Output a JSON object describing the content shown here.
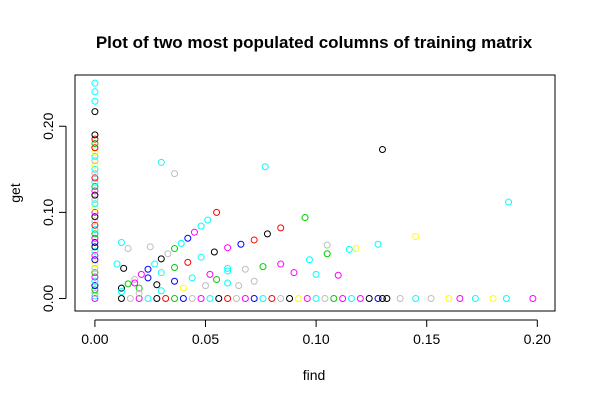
{
  "chart_data": {
    "type": "scatter",
    "title": "Plot of two most populated columns of training matrix",
    "xlabel": "find",
    "ylabel": "get",
    "xlim": [
      -0.009,
      0.208
    ],
    "ylim": [
      -0.0145,
      0.2595
    ],
    "xticks": [
      "0.00",
      "0.05",
      "0.10",
      "0.15",
      "0.20"
    ],
    "xtick_values": [
      0.0,
      0.05,
      0.1,
      0.15,
      0.2
    ],
    "yticks": [
      "0.00",
      "0.10",
      "0.20"
    ],
    "ytick_values": [
      0.0,
      0.1,
      0.2
    ],
    "grid": false,
    "legend": "none",
    "marker": "open-circle",
    "palette": [
      "#000000",
      "#ff0000",
      "#00cd00",
      "#0000ff",
      "#00ffff",
      "#ff00ff",
      "#ffff00",
      "#bebebe"
    ],
    "points": {
      "x_axis_column": {
        "x": 0.0,
        "y": [
          0.0,
          0.003,
          0.006,
          0.01,
          0.015,
          0.02,
          0.025,
          0.03,
          0.035,
          0.04,
          0.045,
          0.05,
          0.055,
          0.06,
          0.065,
          0.07,
          0.075,
          0.08,
          0.085,
          0.09,
          0.095,
          0.1,
          0.105,
          0.11,
          0.115,
          0.12,
          0.125,
          0.13,
          0.135,
          0.14,
          0.145,
          0.15,
          0.155,
          0.16,
          0.165,
          0.17,
          0.175,
          0.18,
          0.185,
          0.19,
          0.217,
          0.229,
          0.24,
          0.25
        ],
        "colors": [
          "#ff00ff",
          "#00ffff",
          "#bebebe",
          "#00cd00",
          "#0000ff",
          "#00ffff",
          "#ff00ff",
          "#00cd00",
          "#bebebe",
          "#ffff00",
          "#0000ff",
          "#ff00ff",
          "#00ffff",
          "#000000",
          "#0000ff",
          "#ff00ff",
          "#00cd00",
          "#00ffff",
          "#ff0000",
          "#bebebe",
          "#000000",
          "#ff00ff",
          "#ffff00",
          "#00ffff",
          "#bebebe",
          "#000000",
          "#ff00ff",
          "#00cd00",
          "#00ffff",
          "#ff0000",
          "#bebebe",
          "#00ffff",
          "#ffff00",
          "#bebebe",
          "#00ffff",
          "#ffff00",
          "#ff0000",
          "#00cd00",
          "#ff0000",
          "#000000",
          "#000000",
          "#00ffff",
          "#00ffff",
          "#00ffff"
        ]
      },
      "y_axis_row": {
        "y": 0.0,
        "x": [
          0.012,
          0.016,
          0.02,
          0.024,
          0.028,
          0.032,
          0.036,
          0.04,
          0.044,
          0.048,
          0.052,
          0.056,
          0.06,
          0.064,
          0.068,
          0.072,
          0.076,
          0.08,
          0.084,
          0.088,
          0.092,
          0.096,
          0.1,
          0.104,
          0.108,
          0.112,
          0.116,
          0.12,
          0.124,
          0.128,
          0.13,
          0.132,
          0.138,
          0.145,
          0.152,
          0.16,
          0.165,
          0.172,
          0.18,
          0.186,
          0.198
        ],
        "colors": [
          "#000000",
          "#bebebe",
          "#ff00ff",
          "#00ffff",
          "#000000",
          "#ff0000",
          "#00cd00",
          "#0000ff",
          "#bebebe",
          "#ff00ff",
          "#00ffff",
          "#000000",
          "#ff0000",
          "#bebebe",
          "#ff00ff",
          "#0000ff",
          "#00ffff",
          "#ff0000",
          "#bebebe",
          "#000000",
          "#ffff00",
          "#ff00ff",
          "#00ffff",
          "#bebebe",
          "#00cd00",
          "#ff00ff",
          "#00ffff",
          "#ff00ff",
          "#000000",
          "#0000ff",
          "#000000",
          "#000000",
          "#bebebe",
          "#00ffff",
          "#bebebe",
          "#ffff00",
          "#ff00ff",
          "#00ffff",
          "#ffff00",
          "#00ffff",
          "#ff00ff"
        ]
      },
      "ray_1": {
        "x": [
          0.012,
          0.015,
          0.018,
          0.021,
          0.024,
          0.027,
          0.03,
          0.033,
          0.036,
          0.039,
          0.042,
          0.045,
          0.048,
          0.051,
          0.055
        ],
        "y": [
          0.012,
          0.017,
          0.022,
          0.028,
          0.034,
          0.04,
          0.046,
          0.052,
          0.058,
          0.064,
          0.07,
          0.077,
          0.084,
          0.091,
          0.1
        ],
        "colors": [
          "#00ffff",
          "#00cd00",
          "#bebebe",
          "#ff00ff",
          "#0000ff",
          "#00ffff",
          "#000000",
          "#bebebe",
          "#00cd00",
          "#00ffff",
          "#0000ff",
          "#ff00ff",
          "#00ffff",
          "#00ffff",
          "#ff0000"
        ]
      },
      "ray_2": {
        "x": [
          0.012,
          0.018,
          0.024,
          0.03,
          0.036,
          0.042,
          0.048,
          0.054,
          0.06,
          0.066,
          0.072,
          0.078,
          0.084
        ],
        "y": [
          0.012,
          0.018,
          0.024,
          0.03,
          0.036,
          0.042,
          0.048,
          0.054,
          0.059,
          0.063,
          0.068,
          0.075,
          0.082
        ],
        "colors": [
          "#000000",
          "#ff00ff",
          "#0000ff",
          "#00ffff",
          "#00cd00",
          "#ff0000",
          "#00ffff",
          "#000000",
          "#ff00ff",
          "#0000ff",
          "#ff0000",
          "#000000",
          "#ff0000"
        ]
      },
      "ray_3": {
        "x": [
          0.012,
          0.02,
          0.028,
          0.036,
          0.044,
          0.052,
          0.06,
          0.068,
          0.076,
          0.084
        ],
        "y": [
          0.008,
          0.012,
          0.016,
          0.02,
          0.024,
          0.028,
          0.032,
          0.034,
          0.037,
          0.04
        ],
        "colors": [
          "#00ffff",
          "#00cd00",
          "#000000",
          "#0000ff",
          "#00ffff",
          "#ff00ff",
          "#00ffff",
          "#bebebe",
          "#00cd00",
          "#ff00ff"
        ]
      },
      "ray_4": {
        "x": [
          0.02,
          0.03,
          0.04,
          0.05,
          0.06
        ],
        "y": [
          0.006,
          0.009,
          0.012,
          0.015,
          0.018
        ],
        "colors": [
          "#bebebe",
          "#00ffff",
          "#ffff00",
          "#bebebe",
          "#00ffff"
        ]
      },
      "scattered": {
        "x": [
          0.03,
          0.036,
          0.077,
          0.13,
          0.187,
          0.012,
          0.015,
          0.01,
          0.013,
          0.095,
          0.097,
          0.1,
          0.105,
          0.105,
          0.11,
          0.115,
          0.118,
          0.128,
          0.145,
          0.09,
          0.072,
          0.055,
          0.065,
          0.06,
          0.025
        ],
        "y": [
          0.158,
          0.145,
          0.153,
          0.173,
          0.112,
          0.065,
          0.058,
          0.04,
          0.035,
          0.094,
          0.045,
          0.028,
          0.062,
          0.052,
          0.027,
          0.057,
          0.058,
          0.063,
          0.072,
          0.03,
          0.02,
          0.022,
          0.015,
          0.035,
          0.06
        ],
        "colors": [
          "#00ffff",
          "#bebebe",
          "#00ffff",
          "#000000",
          "#00ffff",
          "#00ffff",
          "#bebebe",
          "#00ffff",
          "#000000",
          "#00cd00",
          "#00ffff",
          "#00ffff",
          "#bebebe",
          "#00cd00",
          "#ff00ff",
          "#00ffff",
          "#ffff00",
          "#00ffff",
          "#ffff00",
          "#ff00ff",
          "#bebebe",
          "#00cd00",
          "#bebebe",
          "#00ffff",
          "#bebebe"
        ]
      }
    }
  }
}
